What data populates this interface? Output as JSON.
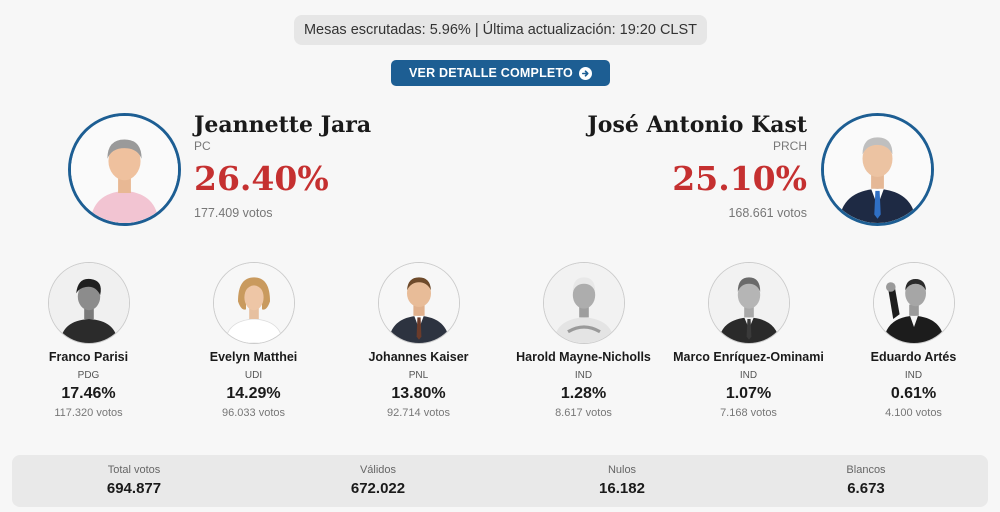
{
  "status": {
    "text": "Mesas escrutadas: 5.96% | Última actualización: 19:20 CLST"
  },
  "detail_button": {
    "label": "VER DETALLE COMPLETO",
    "icon": "arrow-circle-right-icon"
  },
  "main_candidates": [
    {
      "name": "Jeannette Jara",
      "party": "PC",
      "pct": "26.40%",
      "votes": "177.409 votos"
    },
    {
      "name": "José Antonio Kast",
      "party": "PRCH",
      "pct": "25.10%",
      "votes": "168.661 votos"
    }
  ],
  "candidates": [
    {
      "name": "Franco Parisi",
      "party": "PDG",
      "pct": "17.46%",
      "votes": "117.320 votos"
    },
    {
      "name": "Evelyn Matthei",
      "party": "UDI",
      "pct": "14.29%",
      "votes": "96.033 votos"
    },
    {
      "name": "Johannes Kaiser",
      "party": "PNL",
      "pct": "13.80%",
      "votes": "92.714 votos"
    },
    {
      "name": "Harold Mayne-Nicholls",
      "party": "IND",
      "pct": "1.28%",
      "votes": "8.617 votos"
    },
    {
      "name": "Marco Enríquez-Ominami",
      "party": "IND",
      "pct": "1.07%",
      "votes": "7.168 votos"
    },
    {
      "name": "Eduardo Artés",
      "party": "IND",
      "pct": "0.61%",
      "votes": "4.100 votos"
    }
  ],
  "totals": [
    {
      "label": "Total votos",
      "value": "694.877"
    },
    {
      "label": "Válidos",
      "value": "672.022"
    },
    {
      "label": "Nulos",
      "value": "16.182"
    },
    {
      "label": "Blancos",
      "value": "6.673"
    }
  ],
  "colors": {
    "accent_blue": "#1d5e93",
    "pct_red": "#c53030"
  }
}
